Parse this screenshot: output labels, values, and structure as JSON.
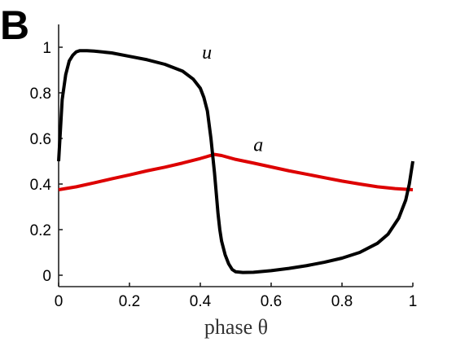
{
  "chart_data": {
    "type": "line",
    "panel_label": "B",
    "title": "",
    "xlabel": "phase θ",
    "ylabel": "",
    "xlim": [
      0,
      1
    ],
    "ylim": [
      -0.05,
      1.1
    ],
    "xticks": [
      0,
      0.2,
      0.4,
      0.6,
      0.8,
      1
    ],
    "xtick_labels": [
      "0",
      "0.2",
      "0.4",
      "0.6",
      "0.8",
      "1"
    ],
    "yticks": [
      0,
      0.2,
      0.4,
      0.6,
      0.8,
      1
    ],
    "ytick_labels": [
      "0",
      "0.2",
      "0.4",
      "0.6",
      "0.8",
      "1"
    ],
    "grid": false,
    "legend": "none",
    "series": [
      {
        "name": "u",
        "color": "#000000",
        "x": [
          0,
          0.01,
          0.02,
          0.03,
          0.04,
          0.05,
          0.06,
          0.08,
          0.1,
          0.15,
          0.2,
          0.25,
          0.3,
          0.35,
          0.38,
          0.4,
          0.41,
          0.42,
          0.43,
          0.44,
          0.445,
          0.45,
          0.455,
          0.46,
          0.47,
          0.48,
          0.49,
          0.5,
          0.52,
          0.55,
          0.6,
          0.65,
          0.7,
          0.75,
          0.8,
          0.85,
          0.9,
          0.93,
          0.96,
          0.98,
          0.99,
          1.0
        ],
        "y": [
          0.5,
          0.77,
          0.88,
          0.94,
          0.965,
          0.98,
          0.985,
          0.985,
          0.983,
          0.975,
          0.96,
          0.945,
          0.925,
          0.895,
          0.86,
          0.82,
          0.78,
          0.72,
          0.6,
          0.45,
          0.36,
          0.27,
          0.2,
          0.15,
          0.09,
          0.05,
          0.025,
          0.015,
          0.012,
          0.013,
          0.02,
          0.03,
          0.042,
          0.057,
          0.075,
          0.1,
          0.14,
          0.18,
          0.25,
          0.33,
          0.4,
          0.5
        ]
      },
      {
        "name": "a",
        "color": "#dd0000",
        "x": [
          0,
          0.05,
          0.1,
          0.15,
          0.2,
          0.25,
          0.3,
          0.35,
          0.4,
          0.44,
          0.46,
          0.5,
          0.55,
          0.6,
          0.65,
          0.7,
          0.75,
          0.8,
          0.85,
          0.9,
          0.95,
          1.0
        ],
        "y": [
          0.375,
          0.388,
          0.405,
          0.423,
          0.44,
          0.458,
          0.474,
          0.492,
          0.512,
          0.53,
          0.525,
          0.508,
          0.492,
          0.475,
          0.458,
          0.443,
          0.428,
          0.413,
          0.4,
          0.388,
          0.38,
          0.375
        ]
      }
    ],
    "annotations": [
      {
        "text": "u",
        "x": 0.405,
        "y": 0.95
      },
      {
        "text": "a",
        "x": 0.55,
        "y": 0.545
      }
    ]
  }
}
